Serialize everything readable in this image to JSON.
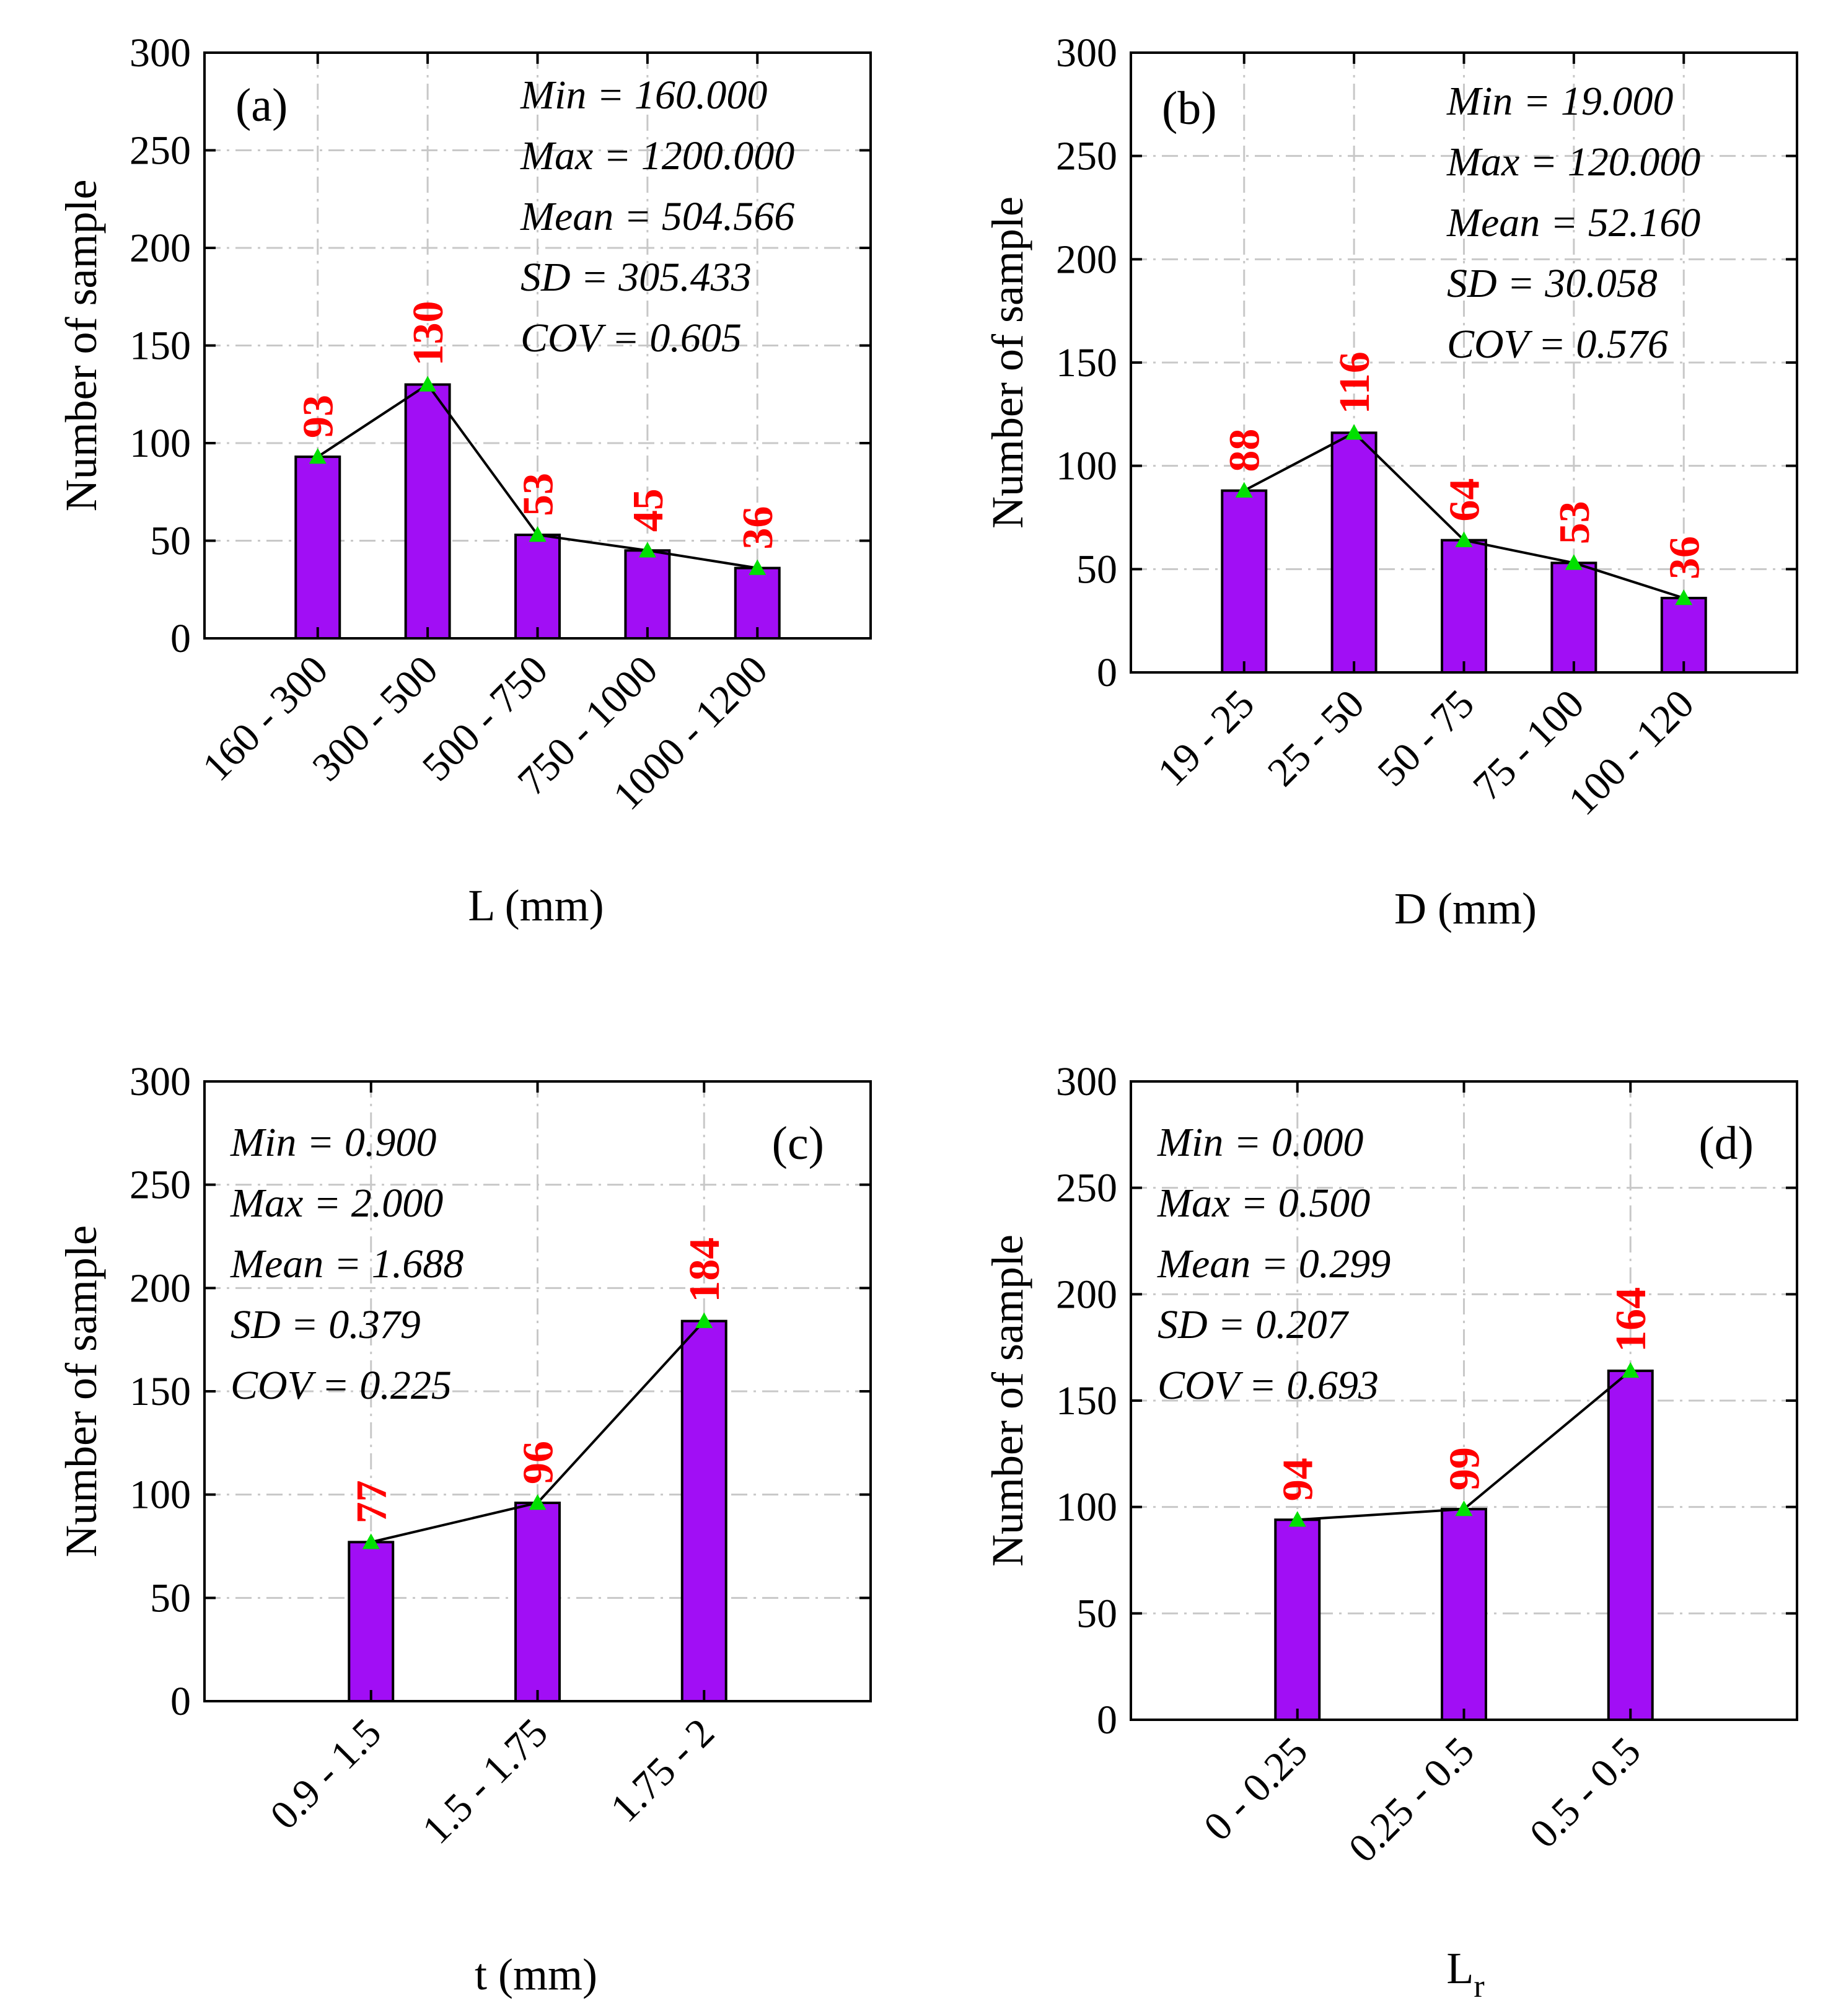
{
  "colors": {
    "bar_fill": "#A10EF5",
    "marker_fill": "#00E000",
    "label_color": "#FF0000",
    "line_color": "#000000",
    "grid_color": "#C8C8C8"
  },
  "ylabel": "Number of sample",
  "chart_data": [
    {
      "type": "bar",
      "panel": "(a)",
      "categories": [
        "160 - 300",
        "300 - 500",
        "500 - 750",
        "750 - 1000",
        "1000 - 1200"
      ],
      "values": [
        93,
        130,
        53,
        45,
        36
      ],
      "xlabel": "L (mm)",
      "xlabel_main": "L (mm)",
      "xlabel_sub": "",
      "ylabel": "Number of sample",
      "ylim": [
        0,
        300
      ],
      "yticks": [
        0,
        50,
        100,
        150,
        200,
        250,
        300
      ],
      "grid": true,
      "overlay": "line with triangle markers",
      "stats_position": "top-right",
      "panel_label_position": "top-left",
      "stats": [
        "Min = 160.000",
        "Max = 1200.000",
        "Mean = 504.566",
        "SD = 305.433",
        "COV = 0.605"
      ]
    },
    {
      "type": "bar",
      "panel": "(b)",
      "categories": [
        "19 - 25",
        "25 - 50",
        "50 - 75",
        "75 - 100",
        "100 - 120"
      ],
      "values": [
        88,
        116,
        64,
        53,
        36
      ],
      "xlabel": "D (mm)",
      "xlabel_main": "D (mm)",
      "xlabel_sub": "",
      "ylabel": "Number of sample",
      "ylim": [
        0,
        300
      ],
      "yticks": [
        0,
        50,
        100,
        150,
        200,
        250,
        300
      ],
      "grid": true,
      "overlay": "line with triangle markers",
      "stats_position": "top-right",
      "panel_label_position": "top-left",
      "stats": [
        "Min = 19.000",
        "Max = 120.000",
        "Mean = 52.160",
        "SD = 30.058",
        "COV = 0.576"
      ]
    },
    {
      "type": "bar",
      "panel": "(c)",
      "categories": [
        "0.9 - 1.5",
        "1.5 - 1.75",
        "1.75 - 2"
      ],
      "values": [
        77,
        96,
        184
      ],
      "xlabel": "t (mm)",
      "xlabel_main": "t (mm)",
      "xlabel_sub": "",
      "ylabel": "Number of sample",
      "ylim": [
        0,
        300
      ],
      "yticks": [
        0,
        50,
        100,
        150,
        200,
        250,
        300
      ],
      "grid": true,
      "overlay": "line with triangle markers",
      "stats_position": "top-left",
      "panel_label_position": "top-right",
      "stats": [
        "Min = 0.900",
        "Max = 2.000",
        "Mean = 1.688",
        "SD = 0.379",
        "COV = 0.225"
      ]
    },
    {
      "type": "bar",
      "panel": "(d)",
      "categories": [
        "0 - 0.25",
        "0.25 - 0.5",
        "0.5 - 0.5"
      ],
      "values": [
        94,
        99,
        164
      ],
      "xlabel": "Lr",
      "xlabel_main": "L",
      "xlabel_sub": "r",
      "ylabel": "Number of sample",
      "ylim": [
        0,
        300
      ],
      "yticks": [
        0,
        50,
        100,
        150,
        200,
        250,
        300
      ],
      "grid": true,
      "overlay": "line with triangle markers",
      "stats_position": "top-left",
      "panel_label_position": "top-right",
      "stats": [
        "Min = 0.000",
        "Max = 0.500",
        "Mean = 0.299",
        "SD = 0.207",
        "COV = 0.693"
      ]
    }
  ]
}
